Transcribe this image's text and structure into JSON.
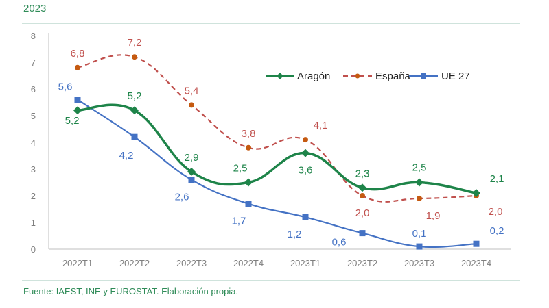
{
  "header": {
    "title": "2023"
  },
  "footer": {
    "source": "Fuente: IAEST, INE y EUROSTAT. Elaboración propia."
  },
  "chart_data": {
    "type": "line",
    "title": "2023",
    "xlabel": "",
    "ylabel": "",
    "categories": [
      "2022T1",
      "2022T2",
      "2022T3",
      "2022T4",
      "2023T1",
      "2023T2",
      "2023T3",
      "2023T4"
    ],
    "ylim": [
      0,
      8
    ],
    "yticks": [
      0,
      1,
      2,
      3,
      4,
      5,
      6,
      7,
      8
    ],
    "grid": false,
    "legend_position": "top-right",
    "series": [
      {
        "name": "Aragón",
        "color": "#1e8449",
        "style": "solid-smooth",
        "marker": "diamond",
        "values": [
          5.2,
          5.2,
          2.9,
          2.5,
          3.6,
          2.3,
          2.5,
          2.1
        ],
        "labels": [
          "5,2",
          "5,2",
          "2,9",
          "2,5",
          "3,6",
          "2,3",
          "2,5",
          "2,1"
        ]
      },
      {
        "name": "España",
        "color": "#c0504d",
        "marker_color": "#c55a11",
        "style": "dashed-smooth",
        "marker": "circle",
        "values": [
          6.8,
          7.2,
          5.4,
          3.8,
          4.1,
          2.0,
          1.9,
          2.0
        ],
        "labels": [
          "6,8",
          "7,2",
          "5,4",
          "3,8",
          "4,1",
          "2,0",
          "1,9",
          "2,0"
        ]
      },
      {
        "name": "UE 27",
        "color": "#4472c4",
        "style": "solid-smooth",
        "marker": "square",
        "values": [
          5.6,
          4.2,
          2.6,
          1.7,
          1.2,
          0.6,
          0.1,
          0.2
        ],
        "labels": [
          "5,6",
          "4,2",
          "2,6",
          "1,7",
          "1,2",
          "0,6",
          "0,1",
          "0,2"
        ]
      }
    ]
  }
}
